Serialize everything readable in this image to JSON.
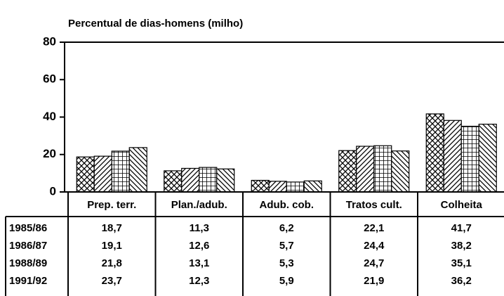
{
  "chart_data": {
    "type": "bar",
    "title": "Percentual de dias-homens (milho)",
    "categories": [
      "Prep. terr.",
      "Plan./adub.",
      "Adub. cob.",
      "Tratos cult.",
      "Colheita"
    ],
    "series": [
      {
        "name": "1985/86",
        "color": "#000000",
        "pattern": "crosshatch",
        "values": [
          18.7,
          11.3,
          6.2,
          22.1,
          41.7
        ],
        "value_labels": [
          "18,7",
          "11,3",
          "6,2",
          "22,1",
          "41,7"
        ]
      },
      {
        "name": "1986/87",
        "color": "#000000",
        "pattern": "diagonal",
        "values": [
          19.1,
          12.6,
          5.7,
          24.4,
          38.2
        ],
        "value_labels": [
          "19,1",
          "12,6",
          "5,7",
          "24,4",
          "38,2"
        ]
      },
      {
        "name": "1988/89",
        "color": "#000000",
        "pattern": "grid",
        "values": [
          21.8,
          13.1,
          5.3,
          24.7,
          35.1
        ],
        "value_labels": [
          "21,8",
          "13,1",
          "5,3",
          "24,7",
          "35,1"
        ]
      },
      {
        "name": "1991/92",
        "color": "#000000",
        "pattern": "backdiagonal",
        "values": [
          23.7,
          12.3,
          5.9,
          21.9,
          36.2
        ],
        "value_labels": [
          "23,7",
          "12,3",
          "5,9",
          "21,9",
          "36,2"
        ]
      }
    ],
    "ylim": [
      0,
      80
    ],
    "yticks": [
      0,
      20,
      40,
      60,
      80
    ]
  }
}
